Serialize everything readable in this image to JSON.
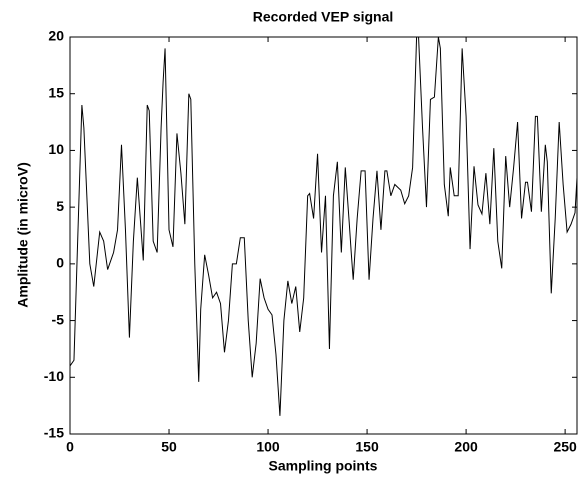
{
  "chart_data": {
    "type": "line",
    "title": "Recorded VEP signal",
    "x_label": "Sampling points",
    "y_label": "Amplitude (in microV)",
    "x": [
      0,
      2,
      6,
      7,
      10,
      12,
      15,
      17,
      19,
      22,
      24,
      26,
      28,
      30,
      32,
      34,
      37,
      39,
      40,
      42,
      44,
      46,
      47,
      48,
      50,
      52,
      54,
      56,
      58,
      60,
      61,
      63,
      65,
      66,
      68,
      70,
      72,
      74,
      76,
      78,
      80,
      82,
      84,
      86,
      88,
      90,
      92,
      94,
      96,
      98,
      100,
      102,
      104,
      106,
      108,
      110,
      112,
      114,
      116,
      118,
      120,
      121,
      123,
      125,
      127,
      129,
      131,
      133,
      135,
      137,
      139,
      141,
      142,
      143,
      145,
      147,
      149,
      151,
      153,
      155,
      157,
      159,
      160,
      162,
      164,
      167,
      169,
      171,
      173,
      175,
      176,
      178,
      180,
      182,
      184,
      186,
      187,
      189,
      191,
      192,
      194,
      196,
      198,
      200,
      202,
      204,
      206,
      208,
      210,
      212,
      214,
      216,
      218,
      220,
      222,
      224,
      226,
      228,
      230,
      231,
      233,
      235,
      236,
      238,
      240,
      241,
      243,
      245,
      247,
      249,
      251,
      253,
      255,
      256
    ],
    "values": [
      -9,
      -8.5,
      14,
      12,
      0,
      -2,
      2.8,
      2,
      -0.5,
      1,
      3,
      10.5,
      3,
      -6.5,
      2,
      7.6,
      0.3,
      14,
      13.5,
      2,
      1,
      12,
      16,
      19,
      3,
      1.5,
      11.5,
      8,
      3.5,
      15,
      14.5,
      0,
      -10.4,
      -4,
      0.8,
      -1,
      -3,
      -2.5,
      -3.5,
      -7.8,
      -5,
      0,
      0,
      2.3,
      2.3,
      -5,
      -10,
      -7,
      -1.3,
      -3,
      -4,
      -4.5,
      -8,
      -13.4,
      -5,
      -1.5,
      -3.5,
      -2,
      -6,
      -3,
      6,
      6.2,
      4,
      9.7,
      1,
      6,
      -7.5,
      6,
      9,
      1,
      8.5,
      3.6,
      1,
      -1.4,
      4,
      8.2,
      8.2,
      -1.4,
      4,
      8.2,
      3,
      8.2,
      8.2,
      6,
      7,
      6.5,
      5.3,
      6,
      8.5,
      20,
      20,
      12,
      5,
      14.5,
      14.7,
      20,
      19,
      7,
      4.2,
      8.5,
      6,
      6,
      19,
      13,
      1.3,
      8.6,
      5.2,
      4.4,
      8,
      3.5,
      10.2,
      2,
      -0.4,
      9.5,
      5,
      8.5,
      12.5,
      4,
      7.2,
      7.2,
      4.6,
      13,
      13,
      4.6,
      10.5,
      9,
      -2.6,
      4,
      12.5,
      7,
      2.8,
      3.5,
      4.5,
      7.6
    ],
    "color": "#000000",
    "xlim": [
      0,
      256
    ],
    "xticks": [
      0,
      50,
      100,
      150,
      200,
      250
    ],
    "ylim": [
      -15,
      20
    ],
    "yticks": [
      -15,
      -10,
      -5,
      0,
      5,
      10,
      15,
      20
    ]
  }
}
